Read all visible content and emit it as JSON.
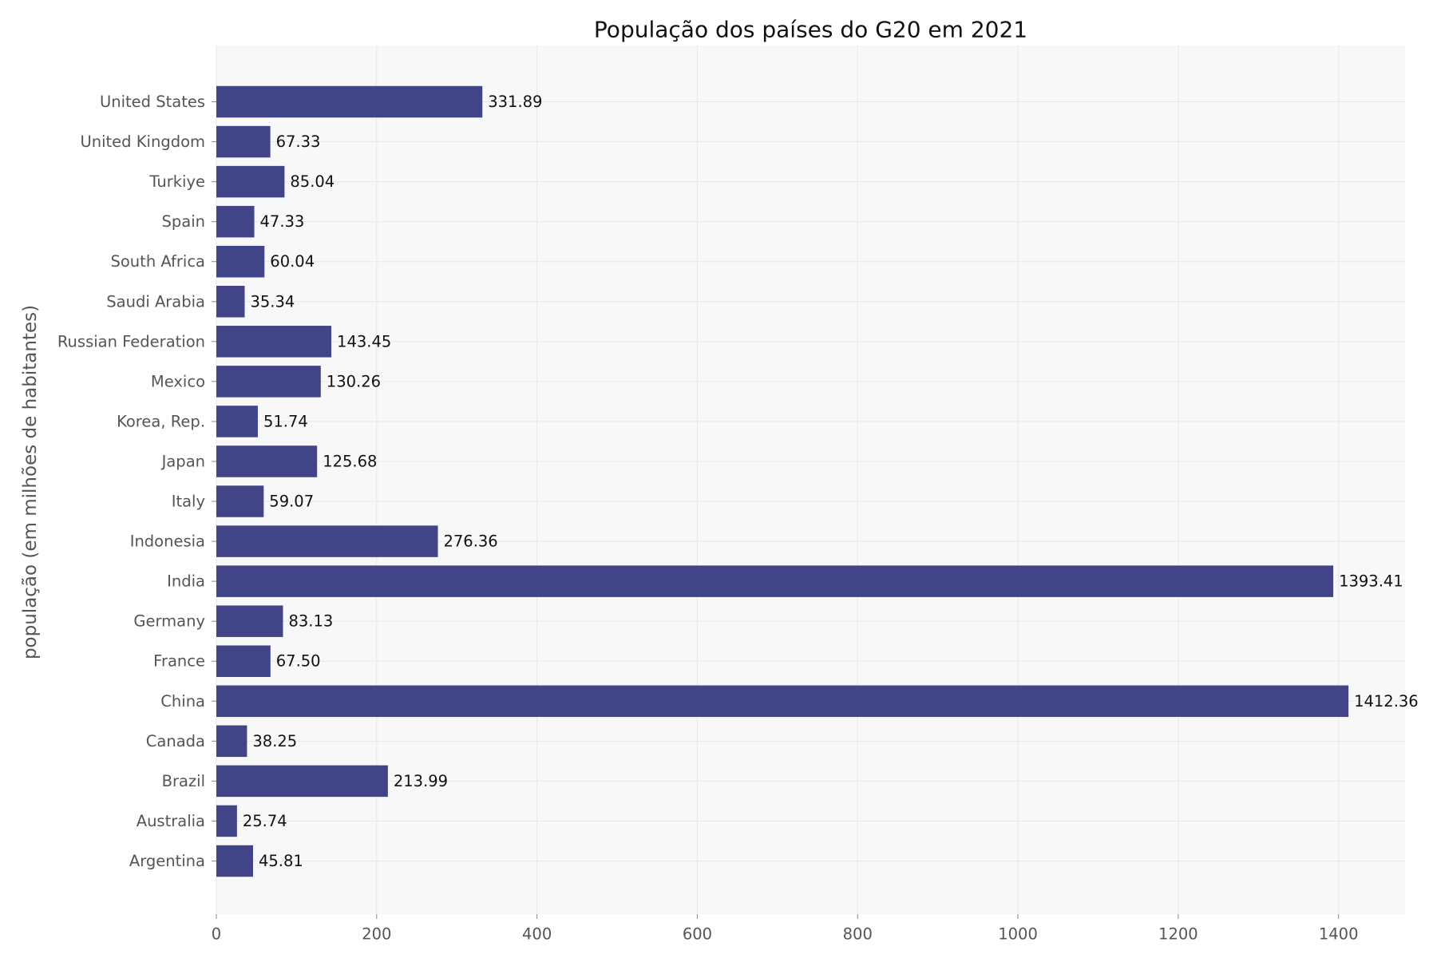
{
  "chart_data": {
    "type": "bar",
    "orientation": "horizontal",
    "title": "População dos países do G20 em 2021",
    "xlabel": "",
    "ylabel": "população (em milhões de habitantes)",
    "categories": [
      "Argentina",
      "Australia",
      "Brazil",
      "Canada",
      "China",
      "France",
      "Germany",
      "India",
      "Indonesia",
      "Italy",
      "Japan",
      "Korea, Rep.",
      "Mexico",
      "Russian Federation",
      "Saudi Arabia",
      "South Africa",
      "Spain",
      "Turkiye",
      "United Kingdom",
      "United States"
    ],
    "values": [
      45.81,
      25.74,
      213.99,
      38.25,
      1412.36,
      67.5,
      83.13,
      1393.41,
      276.36,
      59.07,
      125.68,
      51.74,
      130.26,
      143.45,
      35.34,
      60.04,
      47.33,
      85.04,
      67.33,
      331.89
    ],
    "value_labels": [
      "45.81",
      "25.74",
      "213.99",
      "38.25",
      "1412.36",
      "67.50",
      "83.13",
      "1393.41",
      "276.36",
      "59.07",
      "125.68",
      "51.74",
      "130.26",
      "143.45",
      "35.34",
      "60.04",
      "47.33",
      "85.04",
      "67.33",
      "331.89"
    ],
    "xticks": [
      0,
      200,
      400,
      600,
      800,
      1000,
      1200,
      1400
    ],
    "xtick_labels": [
      "0",
      "200",
      "400",
      "600",
      "800",
      "1000",
      "1200",
      "1400"
    ],
    "xlim": [
      0,
      1482.98
    ],
    "grid": true,
    "colors": {
      "bar": "#414487",
      "plot_background": "#f8f8f8",
      "grid": "#e8e8e8",
      "tick_text": "#555555",
      "label_text": "#111111"
    }
  }
}
